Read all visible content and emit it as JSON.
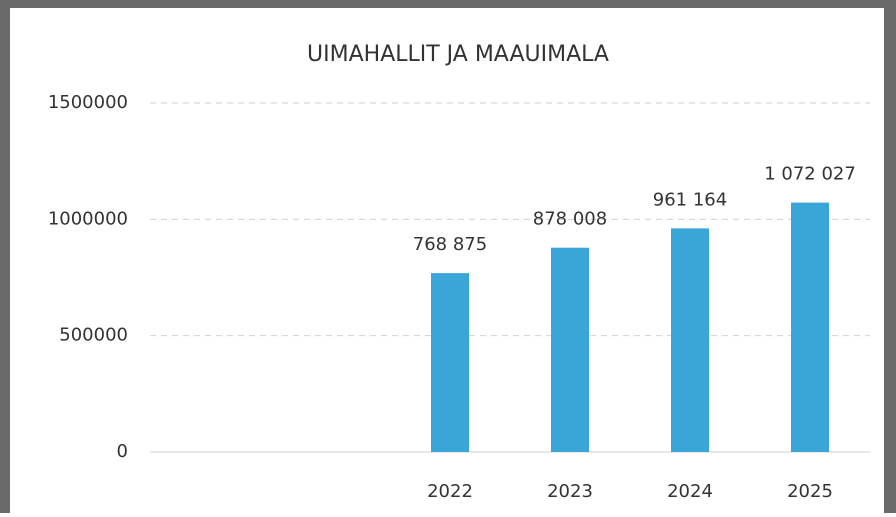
{
  "chart_data": {
    "type": "bar",
    "title": "UIMAHALLIT JA MAAUIMALA",
    "categories": [
      null,
      null,
      "2022",
      "2023",
      "2024",
      "2025"
    ],
    "values": [
      null,
      null,
      768875,
      878008,
      961164,
      1072027
    ],
    "value_labels": [
      null,
      null,
      "768 875",
      "878 008",
      "961 164",
      "1 072 027"
    ],
    "color": "#3aa6d8",
    "ylim": [
      0,
      1500000
    ],
    "yticks": [
      0,
      500000,
      1000000,
      1500000
    ],
    "grid": true
  }
}
